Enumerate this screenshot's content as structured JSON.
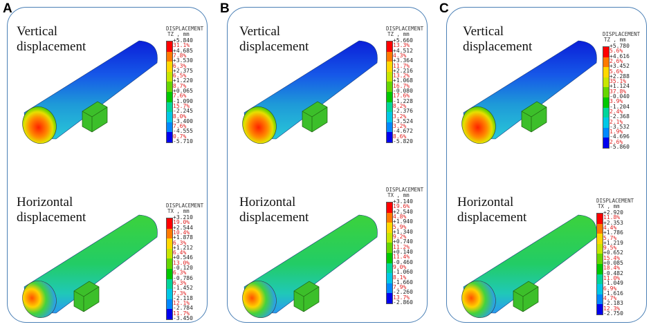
{
  "panels": [
    {
      "label": "A",
      "vertical": {
        "title_line1": "Vertical",
        "title_line2": "displacement",
        "legend_title": "DISPLACEMENT",
        "legend_unit": "TZ , mm",
        "values": [
          "+5.840",
          "+4.685",
          "+3.530",
          "+2.375",
          "+1.220",
          "+0.065",
          "-1.090",
          "-2.245",
          "-3.400",
          "-4.555",
          "-5.710"
        ],
        "percents": [
          "31.1%",
          "7.8%",
          "6.3%",
          "6.5%",
          "8.7%",
          "7.6%",
          "15.7%",
          "8.0%",
          "7.6%",
          "0.7%"
        ]
      },
      "horizontal": {
        "title_line1": "Horizontal",
        "title_line2": "displacement",
        "legend_title": "DISPLACEMENT",
        "legend_unit": "TX , mm",
        "values": [
          "+3.210",
          "+2.544",
          "+1.878",
          "+1.212",
          "+0.546",
          "-0.120",
          "-0.786",
          "-1.452",
          "-2.118",
          "-2.784",
          "-3.450"
        ],
        "percents": [
          "19.0%",
          "10.4%",
          "6.3%",
          "6.4%",
          "13.0%",
          "6.3%",
          "6.3%",
          "7.3%",
          "12.1%",
          "11.7%"
        ]
      }
    },
    {
      "label": "B",
      "vertical": {
        "title_line1": "Vertical",
        "title_line2": "displacement",
        "legend_title": "DISPLACEMENT",
        "legend_unit": "TZ , mm",
        "values": [
          "+5.660",
          "+4.512",
          "+3.364",
          "+2.216",
          "+1.068",
          "-0.080",
          "-1.228",
          "-2.376",
          "-3.524",
          "-4.672",
          "-5.820"
        ],
        "percents": [
          "13.3%",
          "4.3%",
          "11.7%",
          "13.2%",
          "16.7%",
          "17.6%",
          "8.2%",
          "3.2%",
          "3.2%",
          "8.6%"
        ]
      },
      "horizontal": {
        "title_line1": "Horizontal",
        "title_line2": "displacement",
        "legend_title": "DISPLACEMENT",
        "legend_unit": "TX , mm",
        "values": [
          "+3.140",
          "+2.540",
          "+1.940",
          "+1.340",
          "+0.740",
          "+0.140",
          "-0.460",
          "-1.060",
          "-1.660",
          "-2.260",
          "-2.860"
        ],
        "percents": [
          "19.6%",
          "4.8%",
          "5.9%",
          "9.2%",
          "11.2%",
          "11.4%",
          "9.0%",
          "8.1%",
          "7.9%",
          "13.7%"
        ]
      }
    },
    {
      "label": "C",
      "vertical": {
        "title_line1": "Vertical",
        "title_line2": "displacement",
        "legend_title": "DISPLACEMENT",
        "legend_unit": "TZ , mm",
        "values": [
          "+5.780",
          "+4.616",
          "+3.452",
          "+2.288",
          "+1.124",
          "-0.040",
          "-1.204",
          "-2.368",
          "-3.532",
          "-4.696",
          "-5.860"
        ],
        "percents": [
          "5.6%",
          "2.6%",
          "5.6%",
          "35.1%",
          "37.8%",
          "3.9%",
          "2.4%",
          "2.1%",
          "1.9%",
          "2.6%"
        ]
      },
      "horizontal": {
        "title_line1": "Horizontal",
        "title_line2": "displacement",
        "legend_title": "DISPLACEMENT",
        "legend_unit": "TX , mm",
        "values": [
          "+2.920",
          "+2.353",
          "+1.786",
          "+1.219",
          "+0.652",
          "+0.085",
          "-0.482",
          "-1.049",
          "-1.616",
          "-2.183",
          "-2.750"
        ],
        "percents": [
          "11.8%",
          "4.4%",
          "5.7%",
          "9.5%",
          "15.4%",
          "18.4%",
          "11.0%",
          "6.9%",
          "4.7%",
          "12.3%"
        ]
      }
    }
  ],
  "colors": {
    "border": "#4a7fb5",
    "percent_text": "#e02020",
    "scale": [
      "#ff0000",
      "#ff7a00",
      "#ffd800",
      "#c8e600",
      "#66d600",
      "#00c800",
      "#00d59a",
      "#00c8e6",
      "#0088ff",
      "#0000ee"
    ]
  }
}
